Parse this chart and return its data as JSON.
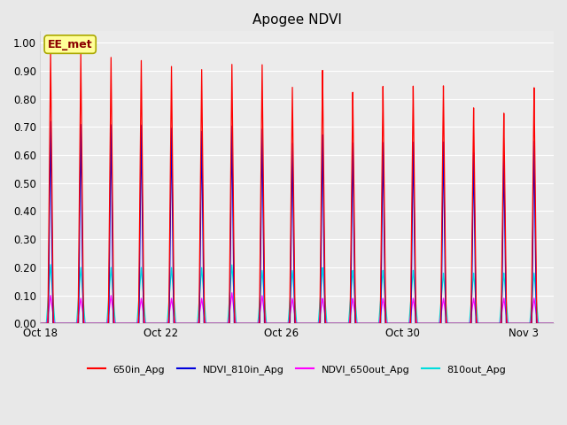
{
  "title": "Apogee NDVI",
  "xlabel": "",
  "ylabel": "",
  "ylim": [
    0.0,
    1.04
  ],
  "yticks": [
    0.0,
    0.1,
    0.2,
    0.3,
    0.4,
    0.5,
    0.6,
    0.7,
    0.8,
    0.9,
    1.0
  ],
  "ytick_labels": [
    "0.00",
    "0.10",
    "0.20",
    "0.30",
    "0.40",
    "0.50",
    "0.60",
    "0.70",
    "0.80",
    "0.90",
    "1.00"
  ],
  "background_color": "#e8e8e8",
  "plot_bg_color": "#ebebeb",
  "annotation_text": "EE_met",
  "annotation_bg": "#ffff99",
  "annotation_border": "#aaa800",
  "series": [
    {
      "label": "650in_Apg",
      "color": "#ff0000"
    },
    {
      "label": "NDVI_810in_Apg",
      "color": "#0000dd"
    },
    {
      "label": "NDVI_650out_Apg",
      "color": "#ff00ff"
    },
    {
      "label": "810out_Apg",
      "color": "#00dddd"
    }
  ],
  "num_cycles": 17,
  "peaks_red": [
    0.97,
    0.96,
    0.95,
    0.94,
    0.92,
    0.91,
    0.93,
    0.93,
    0.85,
    0.91,
    0.83,
    0.85,
    0.85,
    0.85,
    0.77,
    0.75,
    0.84
  ],
  "peaks_blue": [
    0.72,
    0.71,
    0.71,
    0.71,
    0.7,
    0.69,
    0.71,
    0.7,
    0.65,
    0.68,
    0.65,
    0.65,
    0.65,
    0.65,
    0.61,
    0.6,
    0.65
  ],
  "peaks_magenta": [
    0.1,
    0.09,
    0.1,
    0.09,
    0.09,
    0.09,
    0.11,
    0.1,
    0.09,
    0.09,
    0.09,
    0.09,
    0.09,
    0.09,
    0.09,
    0.09,
    0.09
  ],
  "peaks_cyan": [
    0.21,
    0.2,
    0.2,
    0.2,
    0.2,
    0.2,
    0.21,
    0.19,
    0.19,
    0.2,
    0.19,
    0.19,
    0.19,
    0.18,
    0.18,
    0.18,
    0.18
  ],
  "xtick_positions": [
    0,
    4,
    8,
    12,
    16
  ],
  "xtick_labels": [
    "Oct 18",
    "Oct 22",
    "Oct 26",
    "Oct 30",
    "Nov 3"
  ]
}
